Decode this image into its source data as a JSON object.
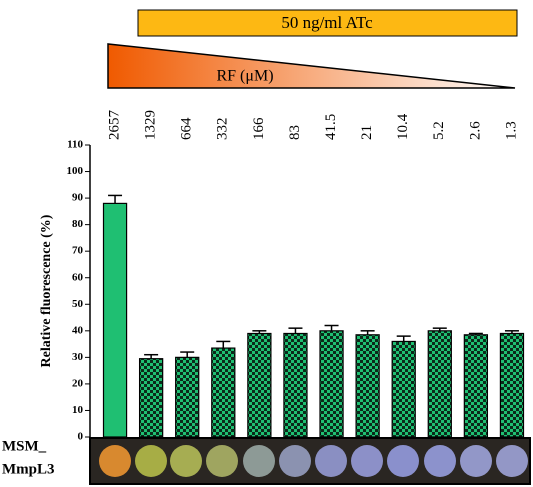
{
  "chart_data": {
    "type": "bar",
    "annotations": [
      "50 ng/ml ATc",
      "RF (μM)"
    ],
    "row_label": [
      "MSM_",
      "MmpL3"
    ],
    "y_label": "Relative fluorescence (%)",
    "categories": [
      "2657",
      "1329",
      "664",
      "332",
      "166",
      "83",
      "41.5",
      "21",
      "10.4",
      "5.2",
      "2.6",
      "1.3"
    ],
    "values": [
      88,
      29.5,
      30,
      33.5,
      39,
      39,
      40,
      38.5,
      36,
      40,
      38.5,
      39
    ],
    "errors": [
      3,
      1.5,
      2,
      2.5,
      1,
      2,
      2,
      1.5,
      2,
      1,
      0.5,
      1
    ],
    "fills": [
      "solid",
      "checkered",
      "checkered",
      "checkered",
      "checkered",
      "checkered",
      "checkered",
      "checkered",
      "checkered",
      "checkered",
      "checkered",
      "checkered"
    ],
    "color": "#1fbf72",
    "ylim": [
      0,
      110
    ],
    "yticks": [
      0,
      10,
      20,
      30,
      40,
      50,
      60,
      70,
      80,
      90,
      100,
      110
    ]
  }
}
